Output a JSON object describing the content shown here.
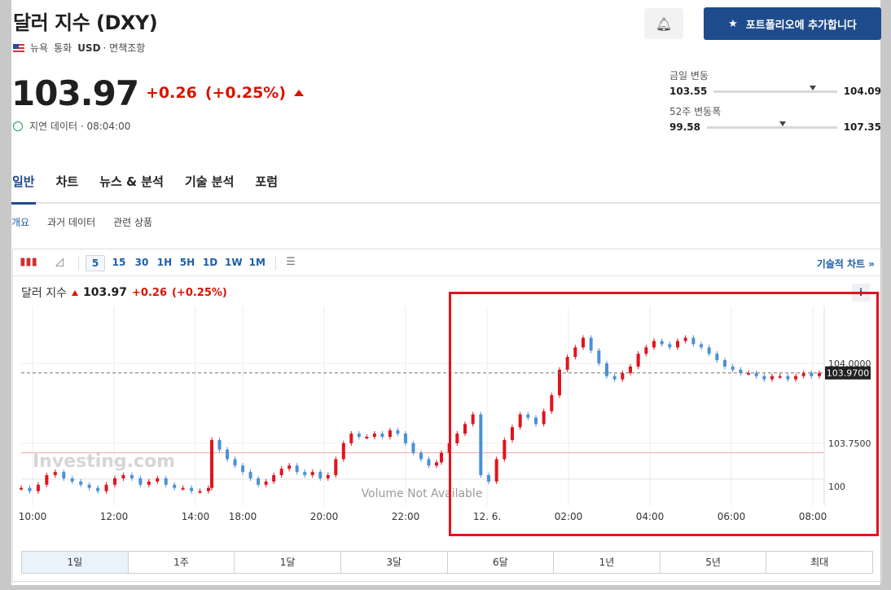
{
  "header": {
    "title": "달러 지수 (DXY)",
    "exchange": "뉴욕",
    "currency_label": "통화",
    "currency": "USD",
    "disclaimer": "· 면책조항",
    "add_portfolio_label": "포트폴리오에 추가합니다"
  },
  "quote": {
    "price": "103.97",
    "change": "+0.26",
    "change_pct": "(+0.25%)",
    "delay_text": "지연 데이터 · 08:04:00"
  },
  "day_range": {
    "label": "금일 변동",
    "low": "103.55",
    "high": "104.09",
    "current_fraction": 0.78
  },
  "week52_range": {
    "label": "52주 변동폭",
    "low": "99.58",
    "high": "107.35",
    "current_fraction": 0.56
  },
  "tabs": [
    "일반",
    "차트",
    "뉴스 & 분석",
    "기술 분석",
    "포럼"
  ],
  "active_tab": 0,
  "subtabs": [
    "개요",
    "과거 데이터",
    "관련 상품"
  ],
  "toolbar": {
    "intervals": [
      "5",
      "15",
      "30",
      "1H",
      "5H",
      "1D",
      "1W",
      "1M"
    ],
    "selected_interval": "5",
    "technical_chart_label": "기술적 차트 »"
  },
  "chart_header": {
    "name": "달러 지수",
    "price": "103.97",
    "change": "+0.26",
    "change_pct": "(+0.25%)",
    "info_label": "i"
  },
  "range_buttons": [
    "1일",
    "1주",
    "1달",
    "3달",
    "6달",
    "1년",
    "5년",
    "최대"
  ],
  "selected_range": "1일",
  "chart_data": {
    "type": "candlestick",
    "x_tick_labels": [
      "10:00",
      "12:00",
      "14:00",
      "18:00",
      "20:00",
      "22:00",
      "12. 6.",
      "02:00",
      "04:00",
      "06:00",
      "08:00"
    ],
    "y_tick_labels": [
      "104.0000",
      "103.7500",
      "100"
    ],
    "current_price_label": "103.9700",
    "volume_text": "Volume Not Available",
    "watermark": "Investing.com",
    "close_series": [
      103.61,
      103.6,
      103.62,
      103.65,
      103.66,
      103.64,
      103.63,
      103.62,
      103.61,
      103.6,
      103.62,
      103.64,
      103.65,
      103.64,
      103.62,
      103.63,
      103.64,
      103.62,
      103.61,
      103.61,
      103.6,
      103.6,
      103.61,
      103.76,
      103.73,
      103.7,
      103.68,
      103.66,
      103.64,
      103.62,
      103.63,
      103.65,
      103.67,
      103.68,
      103.66,
      103.65,
      103.66,
      103.64,
      103.65,
      103.7,
      103.75,
      103.78,
      103.77,
      103.77,
      103.78,
      103.77,
      103.79,
      103.78,
      103.75,
      103.72,
      103.7,
      103.68,
      103.69,
      103.72,
      103.75,
      103.78,
      103.81,
      103.84,
      103.65,
      103.63,
      103.7,
      103.76,
      103.8,
      103.84,
      103.83,
      103.81,
      103.85,
      103.9,
      103.98,
      104.02,
      104.05,
      104.08,
      104.04,
      104.0,
      103.96,
      103.95,
      103.97,
      103.99,
      104.03,
      104.05,
      104.07,
      104.06,
      104.05,
      104.07,
      104.08,
      104.06,
      104.05,
      104.03,
      104.01,
      103.99,
      103.98,
      103.97,
      103.97,
      103.96,
      103.95,
      103.96,
      103.96,
      103.95,
      103.96,
      103.97,
      103.96,
      103.97
    ],
    "red_hline": 103.72,
    "current_price": 103.97
  }
}
